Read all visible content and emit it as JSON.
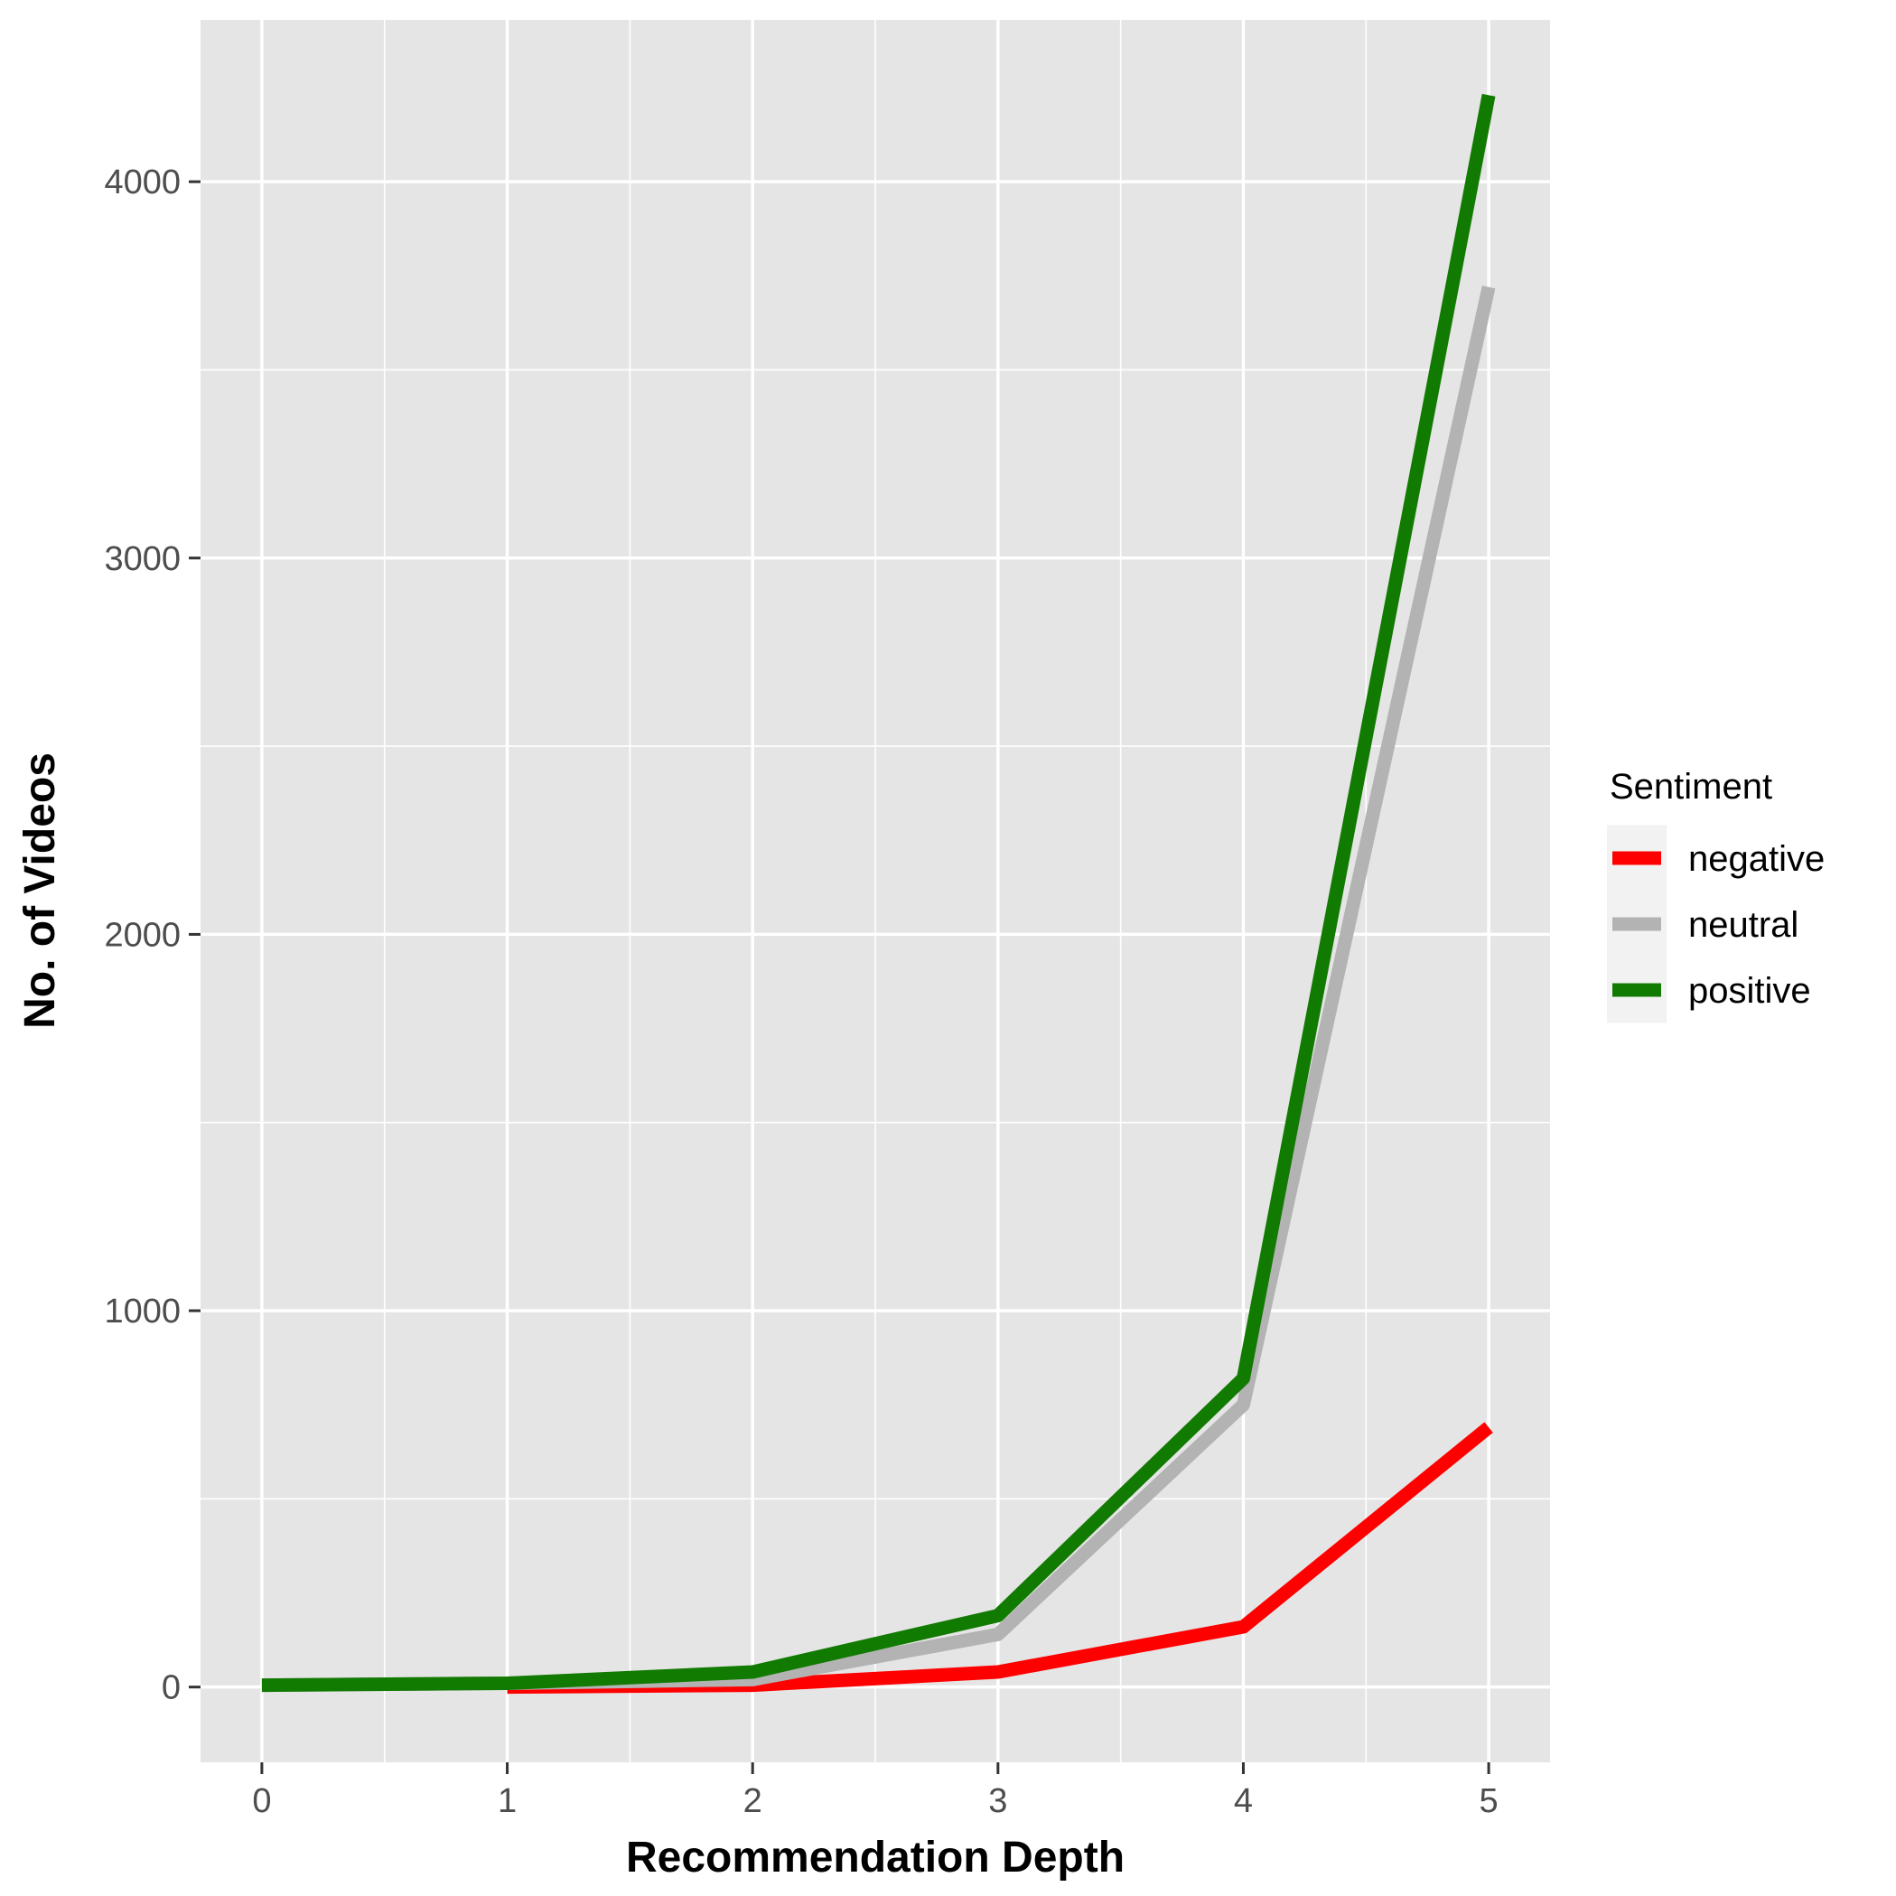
{
  "chart_data": {
    "type": "line",
    "xlabel": "Recommendation Depth",
    "ylabel": "No. of Videos",
    "x": [
      0,
      1,
      2,
      3,
      4,
      5
    ],
    "x_ticks": [
      "0",
      "1",
      "2",
      "3",
      "4",
      "5"
    ],
    "y_ticks": [
      "0",
      "1000",
      "2000",
      "3000",
      "4000"
    ],
    "xlim": [
      -0.25,
      5.25
    ],
    "ylim": [
      -200,
      4430
    ],
    "grid": true,
    "legend": {
      "title": "Sentiment",
      "position": "right"
    },
    "series": [
      {
        "name": "negative",
        "color": "#ff0000",
        "values": [
          null,
          0,
          5,
          40,
          160,
          690
        ]
      },
      {
        "name": "neutral",
        "color": "#b3b3b3",
        "values": [
          5,
          10,
          20,
          140,
          750,
          3720
        ]
      },
      {
        "name": "positive",
        "color": "#117a00",
        "values": [
          5,
          10,
          40,
          190,
          820,
          4230
        ]
      }
    ]
  }
}
